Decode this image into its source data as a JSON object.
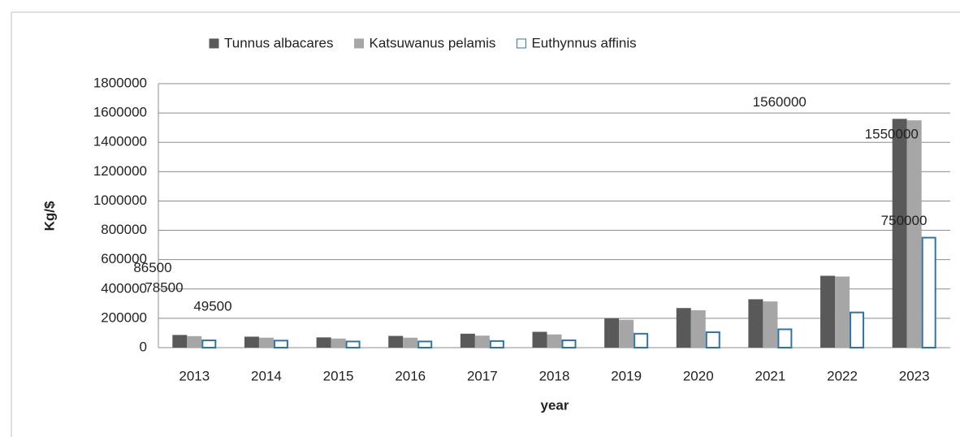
{
  "chart_data": {
    "type": "bar",
    "categories": [
      "2013",
      "2014",
      "2015",
      "2016",
      "2017",
      "2018",
      "2019",
      "2020",
      "2021",
      "2022",
      "2023"
    ],
    "series": [
      {
        "name": "Tunnus albacares",
        "color": "#595959",
        "values": [
          86500,
          75000,
          70000,
          80000,
          95000,
          108000,
          200000,
          270000,
          330000,
          490000,
          1560000
        ],
        "value_labels": [
          "86500",
          null,
          null,
          null,
          null,
          null,
          null,
          null,
          null,
          null,
          "1560000"
        ]
      },
      {
        "name": "Katsuwanus pelamis",
        "color": "#a6a6a6",
        "values": [
          78500,
          68000,
          62000,
          68000,
          82000,
          90000,
          190000,
          255000,
          315000,
          485000,
          1550000
        ],
        "value_labels": [
          "78500",
          null,
          null,
          null,
          null,
          null,
          null,
          null,
          null,
          null,
          "1550000"
        ]
      },
      {
        "name": "Euthynnus affinis",
        "color": "#ffffff",
        "stroke": "#2e75a6",
        "values": [
          49500,
          48000,
          42000,
          42000,
          45000,
          50000,
          95000,
          105000,
          125000,
          240000,
          750000
        ],
        "value_labels": [
          "49500",
          null,
          null,
          null,
          null,
          null,
          null,
          null,
          null,
          null,
          "750000"
        ]
      }
    ],
    "x_label": "year",
    "y_label": "Kg/$",
    "ylim": [
      0,
      1800000
    ],
    "yticks": [
      0,
      200000,
      400000,
      600000,
      800000,
      1000000,
      1200000,
      1400000,
      1600000,
      1800000
    ],
    "grid": true,
    "legend": "top"
  }
}
